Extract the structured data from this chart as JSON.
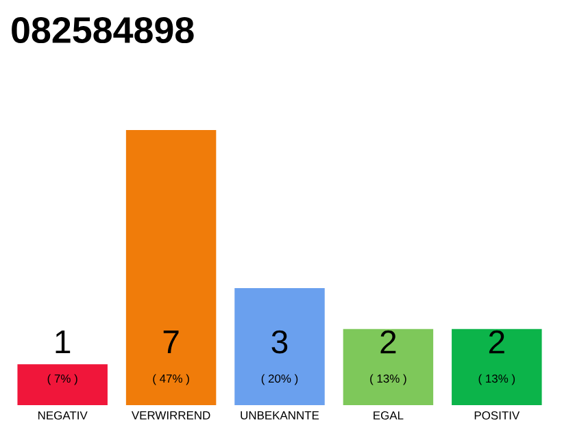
{
  "chart_data": {
    "type": "bar",
    "title": "082584898",
    "categories": [
      "NEGATIV",
      "VERWIRREND",
      "UNBEKANNTE",
      "EGAL",
      "POSITIV"
    ],
    "values": [
      7,
      47,
      20,
      13,
      13
    ],
    "colors": [
      "#f0163a",
      "#f07c0a",
      "#6aa0ee",
      "#7ec85a",
      "#0cb44a"
    ],
    "value_labels": [
      "( 7% )",
      "( 47% )",
      "( 20% )",
      "( 13% )",
      "( 13% )"
    ],
    "annotations": [
      "1",
      "7",
      "3",
      "2",
      "2"
    ],
    "tick_labels": "x"
  }
}
